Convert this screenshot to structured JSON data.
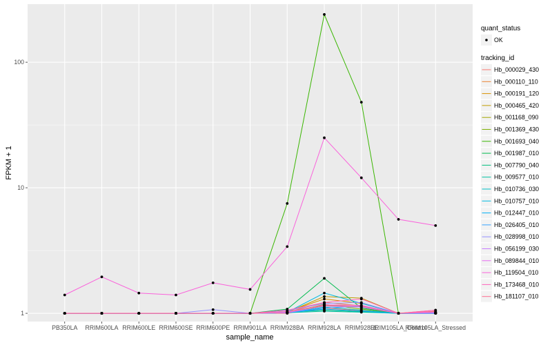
{
  "chart_data": {
    "type": "line",
    "xlabel": "sample_name",
    "ylabel": "FPKM + 1",
    "y_scale": "log10",
    "ylim": [
      0.86,
      290
    ],
    "y_ticks": [
      1,
      10,
      100
    ],
    "y_tick_labels": [
      "1",
      "10",
      "100"
    ],
    "categories": [
      "PB350LA",
      "RRIM600LA",
      "RRIM600LE",
      "RRIM600SE",
      "RRIM600PE",
      "RRIM901LA",
      "RRIM928BA",
      "RRIM928LA",
      "RRIM928LE",
      "RRIM105LA_Control",
      "RRIM105LA_Stressed"
    ],
    "grid": true,
    "legend_position": "right",
    "point_legend": {
      "title": "quant_status",
      "label": "OK"
    },
    "color_legend_title": "tracking_id",
    "series": [
      {
        "name": "Hb_000029_430",
        "color": "#F8766D",
        "values": [
          1,
          1,
          1,
          1,
          1,
          1,
          1,
          1.1,
          1.05,
          1,
          1.06
        ]
      },
      {
        "name": "Hb_000110_110",
        "color": "#EA8331",
        "values": [
          1,
          1,
          1,
          1,
          1,
          1,
          1.02,
          1.22,
          1.15,
          1,
          1.03
        ]
      },
      {
        "name": "Hb_000191_120",
        "color": "#D89000",
        "values": [
          1,
          1,
          1,
          1,
          1,
          1,
          1.03,
          1.3,
          1.2,
          1,
          1.02
        ]
      },
      {
        "name": "Hb_000465_420",
        "color": "#C09B00",
        "values": [
          1,
          1,
          1,
          1,
          1,
          1,
          1.02,
          1.36,
          1.32,
          1,
          1.01
        ]
      },
      {
        "name": "Hb_001168_090",
        "color": "#A3A500",
        "values": [
          1,
          1,
          1,
          1,
          1,
          1,
          1.01,
          1.15,
          1.12,
          1,
          1.01
        ]
      },
      {
        "name": "Hb_001369_430",
        "color": "#7CAE00",
        "values": [
          1,
          1,
          1,
          1,
          1,
          1,
          1.01,
          1.18,
          1.08,
          1,
          1.02
        ]
      },
      {
        "name": "Hb_001693_040",
        "color": "#39B600",
        "values": [
          1,
          1,
          1,
          1,
          1,
          1,
          7.5,
          240,
          48,
          1,
          1
        ]
      },
      {
        "name": "Hb_001987_010",
        "color": "#00BB4E",
        "values": [
          1,
          1,
          1,
          1,
          1,
          1,
          1.08,
          1.9,
          1.1,
          1,
          1
        ]
      },
      {
        "name": "Hb_007790_040",
        "color": "#00BF7D",
        "values": [
          1,
          1,
          1,
          1,
          1,
          1,
          1.02,
          1.06,
          1.03,
          1,
          1
        ]
      },
      {
        "name": "Hb_009577_010",
        "color": "#00C1A3",
        "values": [
          1,
          1,
          1,
          1,
          1,
          1,
          1.01,
          1.04,
          1.02,
          1,
          1
        ]
      },
      {
        "name": "Hb_010736_030",
        "color": "#00BFC4",
        "values": [
          1,
          1,
          1,
          1,
          1,
          1,
          1.01,
          1.12,
          1.06,
          1,
          1
        ]
      },
      {
        "name": "Hb_010757_010",
        "color": "#00BAE0",
        "values": [
          1,
          1,
          1,
          1,
          1,
          1,
          1.02,
          1.45,
          1.2,
          1,
          1
        ]
      },
      {
        "name": "Hb_012447_010",
        "color": "#00B0F6",
        "values": [
          1,
          1,
          1,
          1,
          1,
          1,
          1.01,
          1.08,
          1.04,
          1,
          1
        ]
      },
      {
        "name": "Hb_026405_010",
        "color": "#35A2FF",
        "values": [
          1,
          1,
          1,
          1,
          1,
          1,
          1.01,
          1.1,
          1.14,
          1,
          1
        ]
      },
      {
        "name": "Hb_028998_010",
        "color": "#9590FF",
        "values": [
          1,
          1,
          1,
          1,
          1.07,
          1,
          1.05,
          1.2,
          1.22,
          1,
          1
        ]
      },
      {
        "name": "Hb_056199_030",
        "color": "#C77CFF",
        "values": [
          1,
          1,
          1,
          1,
          1,
          1,
          1.01,
          1.14,
          1.12,
          1,
          1.01
        ]
      },
      {
        "name": "Hb_089844_010",
        "color": "#E76BF3",
        "values": [
          1,
          1,
          1,
          1,
          1,
          1,
          1.02,
          1.17,
          1.16,
          1,
          1.02
        ]
      },
      {
        "name": "Hb_119504_010",
        "color": "#FA62DB",
        "values": [
          1.4,
          1.95,
          1.45,
          1.4,
          1.75,
          1.55,
          3.4,
          25,
          12,
          5.6,
          5
        ]
      },
      {
        "name": "Hb_173468_010",
        "color": "#FF62BC",
        "values": [
          1,
          1,
          1,
          1,
          1,
          1,
          1.06,
          1.22,
          1.3,
          1,
          1.06
        ]
      },
      {
        "name": "Hb_181107_010",
        "color": "#FF6C91",
        "values": [
          1,
          1,
          1,
          1,
          1,
          1,
          1.03,
          1.16,
          1.14,
          1,
          1.04
        ]
      }
    ]
  }
}
